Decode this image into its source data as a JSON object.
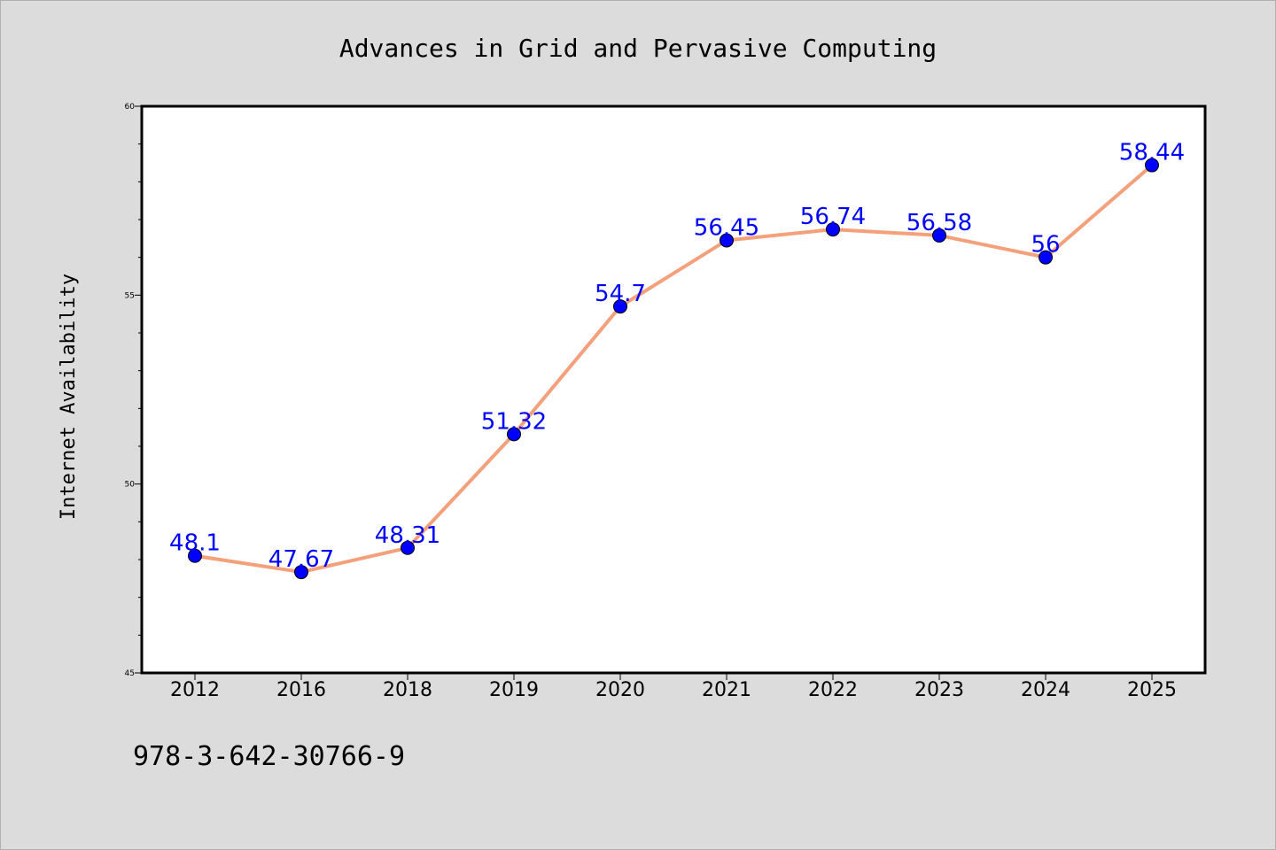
{
  "footer_text": "978-3-642-30766-9",
  "colors": {
    "background": "#dcdcdc",
    "plot_background": "#ffffff",
    "line": "#f4a07a",
    "marker": "#0000ff",
    "data_label": "#0000ff"
  },
  "chart_data": {
    "type": "line",
    "title": "Advances in Grid and Pervasive Computing",
    "xlabel": "",
    "ylabel": "Internet Availability",
    "categories": [
      "2012",
      "2016",
      "2018",
      "2019",
      "2020",
      "2021",
      "2022",
      "2023",
      "2024",
      "2025"
    ],
    "values": [
      48.1,
      47.67,
      48.31,
      51.32,
      54.7,
      56.45,
      56.74,
      56.58,
      56,
      58.44
    ],
    "data_labels": [
      "48.1",
      "47.67",
      "48.31",
      "51.32",
      "54.7",
      "56.45",
      "56.74",
      "56.58",
      "56",
      "58.44"
    ],
    "ylim": [
      45,
      60
    ],
    "yticks": [
      "45",
      "50",
      "55",
      "60"
    ],
    "grid": false,
    "legend": "none"
  }
}
